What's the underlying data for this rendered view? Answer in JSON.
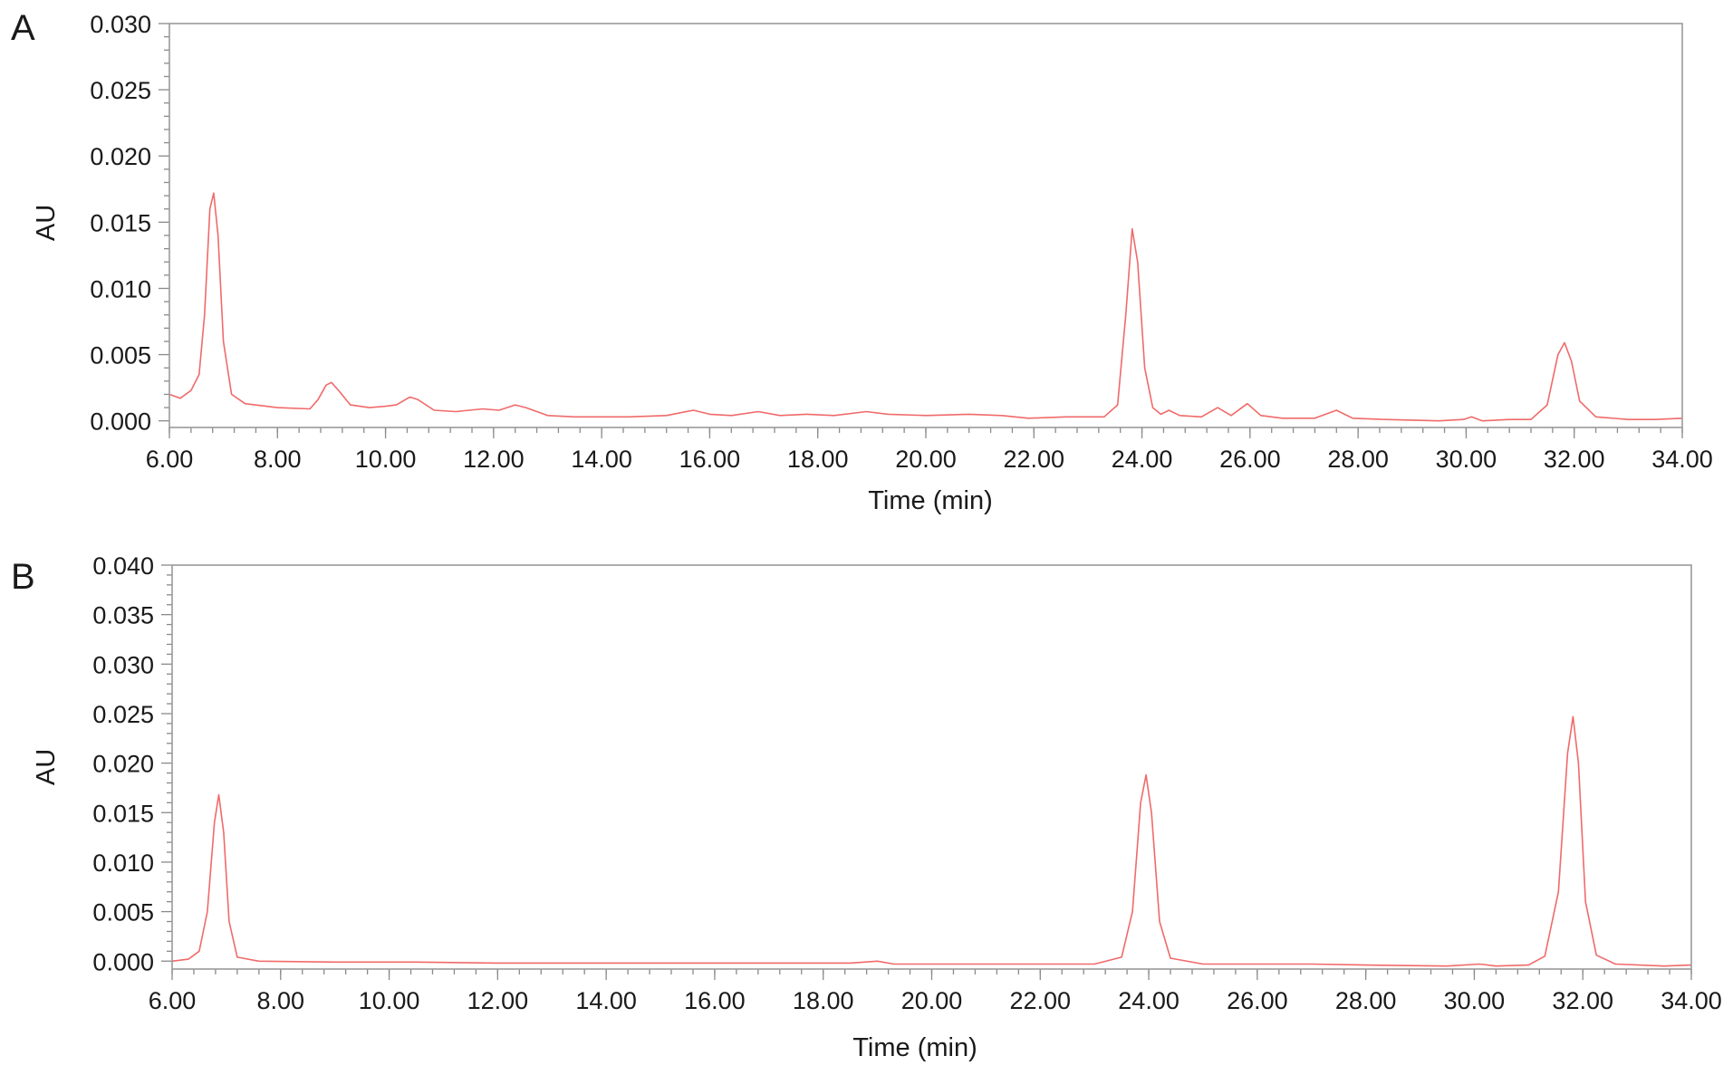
{
  "figure": {
    "background": "#ffffff",
    "trace_color": "#f06a6a"
  },
  "chart_data": [
    {
      "type": "line",
      "panel_label": "A",
      "xlabel": "Time (min)",
      "ylabel": "AU",
      "xlim": [
        6.0,
        34.0
      ],
      "ylim": [
        -0.0005,
        0.03
      ],
      "x_ticks": [
        "6.00",
        "8.00",
        "10.00",
        "12.00",
        "14.00",
        "16.00",
        "18.00",
        "20.00",
        "22.00",
        "24.00",
        "26.00",
        "28.00",
        "30.00",
        "32.00",
        "34.00"
      ],
      "y_ticks": [
        "0.000",
        "0.005",
        "0.010",
        "0.015",
        "0.020",
        "0.025",
        "0.030"
      ],
      "grid": false,
      "legend": "none",
      "series": [
        {
          "color": "#f06a6a",
          "points": [
            [
              6.0,
              0.002
            ],
            [
              6.2,
              0.0017
            ],
            [
              6.4,
              0.0023
            ],
            [
              6.55,
              0.0035
            ],
            [
              6.65,
              0.008
            ],
            [
              6.75,
              0.016
            ],
            [
              6.82,
              0.0172
            ],
            [
              6.9,
              0.014
            ],
            [
              7.0,
              0.006
            ],
            [
              7.15,
              0.002
            ],
            [
              7.4,
              0.0013
            ],
            [
              8.0,
              0.001
            ],
            [
              8.6,
              0.0009
            ],
            [
              8.75,
              0.0016
            ],
            [
              8.9,
              0.0027
            ],
            [
              9.0,
              0.0029
            ],
            [
              9.15,
              0.0022
            ],
            [
              9.35,
              0.0012
            ],
            [
              9.7,
              0.001
            ],
            [
              10.0,
              0.0011
            ],
            [
              10.2,
              0.0012
            ],
            [
              10.45,
              0.0018
            ],
            [
              10.6,
              0.0016
            ],
            [
              10.9,
              0.0008
            ],
            [
              11.3,
              0.0007
            ],
            [
              11.8,
              0.0009
            ],
            [
              12.1,
              0.0008
            ],
            [
              12.4,
              0.0012
            ],
            [
              12.6,
              0.001
            ],
            [
              13.0,
              0.0004
            ],
            [
              13.5,
              0.0003
            ],
            [
              14.5,
              0.0003
            ],
            [
              15.2,
              0.0004
            ],
            [
              15.7,
              0.0008
            ],
            [
              16.0,
              0.0005
            ],
            [
              16.4,
              0.0004
            ],
            [
              16.9,
              0.0007
            ],
            [
              17.3,
              0.0004
            ],
            [
              17.8,
              0.0005
            ],
            [
              18.3,
              0.0004
            ],
            [
              18.9,
              0.0007
            ],
            [
              19.3,
              0.0005
            ],
            [
              20.0,
              0.0004
            ],
            [
              20.8,
              0.0005
            ],
            [
              21.4,
              0.0004
            ],
            [
              21.9,
              0.0002
            ],
            [
              22.6,
              0.0003
            ],
            [
              23.3,
              0.0003
            ],
            [
              23.55,
              0.0012
            ],
            [
              23.7,
              0.008
            ],
            [
              23.82,
              0.0145
            ],
            [
              23.92,
              0.012
            ],
            [
              24.05,
              0.004
            ],
            [
              24.2,
              0.001
            ],
            [
              24.35,
              0.0005
            ],
            [
              24.5,
              0.0008
            ],
            [
              24.7,
              0.0004
            ],
            [
              25.1,
              0.0003
            ],
            [
              25.4,
              0.001
            ],
            [
              25.65,
              0.0004
            ],
            [
              25.95,
              0.0013
            ],
            [
              26.2,
              0.0004
            ],
            [
              26.6,
              0.0002
            ],
            [
              27.2,
              0.0002
            ],
            [
              27.6,
              0.0008
            ],
            [
              27.9,
              0.0002
            ],
            [
              28.5,
              0.0001
            ],
            [
              29.5,
              0.0
            ],
            [
              29.95,
              0.0001
            ],
            [
              30.1,
              0.0003
            ],
            [
              30.3,
              0.0
            ],
            [
              30.8,
              0.0001
            ],
            [
              31.2,
              0.0001
            ],
            [
              31.5,
              0.0012
            ],
            [
              31.7,
              0.005
            ],
            [
              31.82,
              0.0059
            ],
            [
              31.95,
              0.0045
            ],
            [
              32.1,
              0.0015
            ],
            [
              32.4,
              0.0003
            ],
            [
              33.0,
              0.0001
            ],
            [
              33.5,
              0.0001
            ],
            [
              34.0,
              0.0002
            ]
          ]
        }
      ]
    },
    {
      "type": "line",
      "panel_label": "B",
      "xlabel": "Time (min)",
      "ylabel": "AU",
      "xlim": [
        6.0,
        34.0
      ],
      "ylim": [
        -0.0008,
        0.04
      ],
      "x_ticks": [
        "6.00",
        "8.00",
        "10.00",
        "12.00",
        "14.00",
        "16.00",
        "18.00",
        "20.00",
        "22.00",
        "24.00",
        "26.00",
        "28.00",
        "30.00",
        "32.00",
        "34.00"
      ],
      "y_ticks": [
        "0.000",
        "0.005",
        "0.010",
        "0.015",
        "0.020",
        "0.025",
        "0.030",
        "0.035",
        "0.040"
      ],
      "grid": false,
      "legend": "none",
      "series": [
        {
          "color": "#f06a6a",
          "points": [
            [
              6.0,
              0.0
            ],
            [
              6.3,
              0.0002
            ],
            [
              6.5,
              0.001
            ],
            [
              6.65,
              0.005
            ],
            [
              6.78,
              0.014
            ],
            [
              6.86,
              0.0168
            ],
            [
              6.95,
              0.013
            ],
            [
              7.05,
              0.004
            ],
            [
              7.2,
              0.0004
            ],
            [
              7.6,
              0.0
            ],
            [
              9.0,
              -0.0001
            ],
            [
              10.5,
              -0.0001
            ],
            [
              12.0,
              -0.0002
            ],
            [
              16.0,
              -0.0002
            ],
            [
              18.5,
              -0.0002
            ],
            [
              19.0,
              0.0
            ],
            [
              19.3,
              -0.0003
            ],
            [
              21.0,
              -0.0003
            ],
            [
              23.0,
              -0.0003
            ],
            [
              23.5,
              0.0004
            ],
            [
              23.7,
              0.005
            ],
            [
              23.85,
              0.016
            ],
            [
              23.95,
              0.0188
            ],
            [
              24.05,
              0.015
            ],
            [
              24.2,
              0.004
            ],
            [
              24.4,
              0.0003
            ],
            [
              25.0,
              -0.0003
            ],
            [
              27.0,
              -0.0003
            ],
            [
              28.0,
              -0.0004
            ],
            [
              29.5,
              -0.0005
            ],
            [
              30.1,
              -0.0003
            ],
            [
              30.4,
              -0.0005
            ],
            [
              31.0,
              -0.0004
            ],
            [
              31.3,
              0.0005
            ],
            [
              31.55,
              0.007
            ],
            [
              31.72,
              0.021
            ],
            [
              31.82,
              0.0247
            ],
            [
              31.92,
              0.02
            ],
            [
              32.05,
              0.006
            ],
            [
              32.25,
              0.0006
            ],
            [
              32.6,
              -0.0003
            ],
            [
              33.5,
              -0.0005
            ],
            [
              34.0,
              -0.0004
            ]
          ]
        }
      ]
    }
  ]
}
